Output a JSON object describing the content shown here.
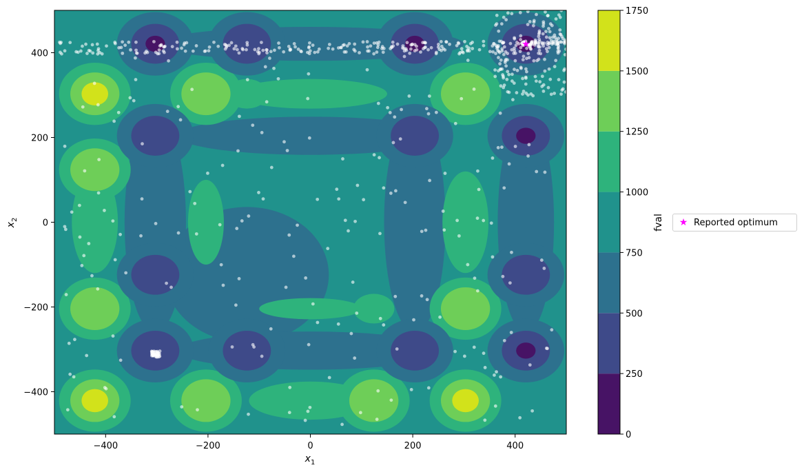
{
  "chart_data": {
    "type": "contour",
    "title": "",
    "xlabel": "x",
    "xlabel_sub": "1",
    "ylabel": "x",
    "ylabel_sub": "2",
    "xlim": [
      -500,
      500
    ],
    "ylim": [
      -500,
      500
    ],
    "xticks": [
      -400,
      -200,
      0,
      200,
      400
    ],
    "yticks": [
      -400,
      -200,
      0,
      200,
      400
    ],
    "colorbar": {
      "label": "fval",
      "levels": [
        0,
        250,
        500,
        750,
        1000,
        1250,
        1500,
        1750
      ],
      "colors": [
        "#471365",
        "#3e4a89",
        "#2d718e",
        "#20928c",
        "#2eb37c",
        "#6ece58",
        "#d2e21b"
      ]
    },
    "reported_optimum": {
      "x": 421,
      "y": 421,
      "color": "#ff00ff",
      "marker": "star"
    },
    "legend": {
      "entries": [
        "Reported optimum"
      ],
      "placement": "outside-right"
    },
    "minima_markers": [
      {
        "x": 421,
        "y": 421,
        "level": 0
      },
      {
        "x": 421,
        "y": 204,
        "level": 0
      },
      {
        "x": 421,
        "y": -303,
        "level": 0
      },
      {
        "x": -303,
        "y": 421,
        "level": 0
      },
      {
        "x": 204,
        "y": 421,
        "level": 0
      },
      {
        "x": -303,
        "y": -303,
        "level": 1
      },
      {
        "x": 204,
        "y": 204,
        "level": 1
      },
      {
        "x": -303,
        "y": 204,
        "level": 1
      },
      {
        "x": 204,
        "y": -303,
        "level": 1
      },
      {
        "x": -303,
        "y": -124,
        "level": 1
      },
      {
        "x": -124,
        "y": -303,
        "level": 1
      },
      {
        "x": 421,
        "y": -124,
        "level": 1
      },
      {
        "x": -124,
        "y": 421,
        "level": 1
      }
    ],
    "maxima_markers": [
      {
        "x": -421,
        "y": 303,
        "level": 6
      },
      {
        "x": -421,
        "y": -421,
        "level": 6
      },
      {
        "x": 303,
        "y": -421,
        "level": 6
      },
      {
        "x": 303,
        "y": -204,
        "level": 5
      },
      {
        "x": 303,
        "y": 303,
        "level": 5
      },
      {
        "x": -204,
        "y": 303,
        "level": 5
      },
      {
        "x": -421,
        "y": -204,
        "level": 5
      },
      {
        "x": -421,
        "y": 124,
        "level": 5
      },
      {
        "x": -204,
        "y": -421,
        "level": 5
      },
      {
        "x": 124,
        "y": -421,
        "level": 5
      }
    ],
    "samples_note": "white translucent points of evaluated samples",
    "sample_color": "#ffffff"
  }
}
